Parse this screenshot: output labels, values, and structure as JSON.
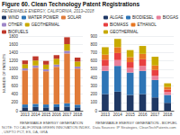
{
  "chart_data": [
    {
      "type": "bar",
      "title": "Figure 60. Clean Technology Patent Registrations",
      "subtitle": "RENEWABLE ENERGY, CALIFORNIA, 2013–2018",
      "annotations": [
        "NOTE: TO CALIFORNIA GREEN INNOVATION INDEX.  Data Sources: IP Strategies, CleanTechPatents.com, USPTO PCT, ES, DA, GRA"
      ],
      "x_label": "RENEWABLE ENERGY GENERATION",
      "y_label": "NUMBER OF PATENTS",
      "stacked": true,
      "grid": true,
      "legend": "upper left",
      "categories": [
        "2013",
        "2014",
        "2015",
        "2016",
        "2017",
        "2018"
      ],
      "ylim": [
        0,
        1800
      ],
      "yticks": [
        0,
        200,
        400,
        600,
        800,
        1000,
        1200,
        1400,
        1600,
        1800
      ],
      "series": [
        {
          "name": "WIND",
          "color": "#1f3864",
          "values": [
            80,
            90,
            80,
            85,
            100,
            80
          ]
        },
        {
          "name": "WATER POWER",
          "color": "#2e75b6",
          "values": [
            70,
            75,
            70,
            70,
            80,
            65
          ]
        },
        {
          "name": "SOLAR",
          "color": "#e07b39",
          "values": [
            820,
            870,
            800,
            900,
            1200,
            870
          ]
        },
        {
          "name": "OTHER",
          "color": "#9e86c8",
          "values": [
            50,
            55,
            50,
            55,
            65,
            50
          ]
        },
        {
          "name": "GEOTHERMAL",
          "color": "#c8aa00",
          "values": [
            100,
            120,
            110,
            140,
            160,
            120
          ]
        },
        {
          "name": "BIOFUELS",
          "color": "#c0392b",
          "values": [
            90,
            100,
            90,
            90,
            165,
            95
          ]
        }
      ]
    },
    {
      "type": "bar",
      "x_label": "RENEWABLE ENERGY GENERATION - BIOFUEL",
      "stacked": true,
      "grid": true,
      "legend": "upper right",
      "categories": [
        "2013",
        "2014",
        "2015",
        "2016",
        "2017",
        "2018"
      ],
      "ylim": [
        0,
        900
      ],
      "yticks": [
        0,
        100,
        200,
        300,
        400,
        500,
        600,
        700,
        800,
        900
      ],
      "series": [
        {
          "name": "ALGAE",
          "color": "#1f3864",
          "values": [
            200,
            230,
            190,
            200,
            160,
            95
          ]
        },
        {
          "name": "BIODIESEL",
          "color": "#2e75b6",
          "values": [
            280,
            310,
            270,
            280,
            210,
            95
          ]
        },
        {
          "name": "BIOGAS",
          "color": "#e87f9a",
          "values": [
            60,
            70,
            55,
            60,
            50,
            35
          ]
        },
        {
          "name": "BIOMASS",
          "color": "#e84040",
          "values": [
            75,
            85,
            70,
            80,
            70,
            30
          ]
        },
        {
          "name": "ETHANOL",
          "color": "#e87722",
          "values": [
            60,
            70,
            60,
            65,
            55,
            30
          ]
        },
        {
          "name": "GEOTHERMAL",
          "color": "#c8aa00",
          "values": [
            90,
            100,
            85,
            95,
            105,
            45
          ]
        }
      ]
    }
  ]
}
